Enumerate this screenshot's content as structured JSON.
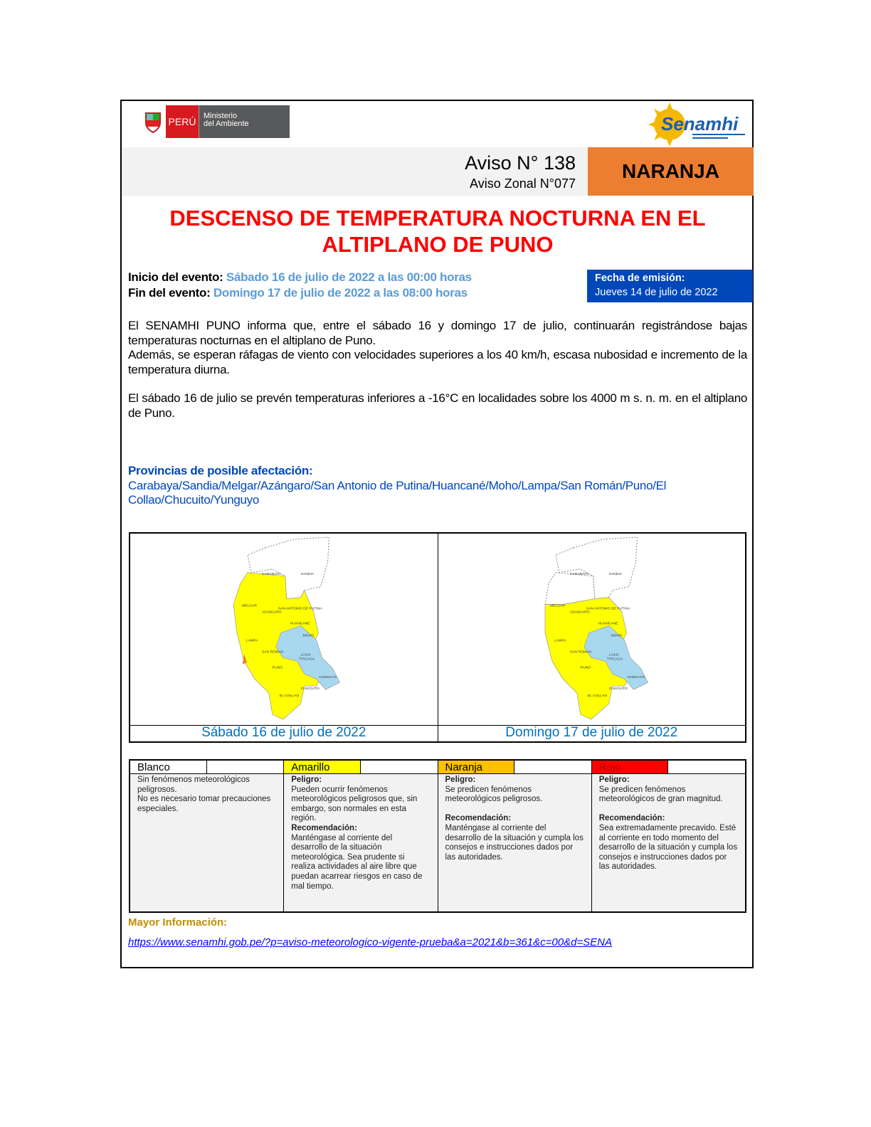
{
  "header": {
    "country": "PERÚ",
    "ministry_line1": "Ministerio",
    "ministry_line2": "del Ambiente",
    "agency_logo": "Senamhi",
    "aviso": "Aviso N° 138",
    "aviso_zonal": "Aviso Zonal N°077",
    "level": "NARANJA",
    "level_color": "#ed7d31"
  },
  "title_line1": "DESCENSO DE TEMPERATURA NOCTURNA EN EL",
  "title_line2": "ALTIPLANO DE PUNO",
  "event": {
    "start_label": "Inicio del evento:",
    "start_value": "Sábado 16 de julio de 2022 a las 00:00 horas",
    "end_label": "Fin del evento:",
    "end_value": "Domingo 17 de julio de 2022 a las 08:00 horas"
  },
  "emission": {
    "label": "Fecha de emisión:",
    "value": "Jueves 14 de julio de 2022"
  },
  "body": {
    "p1": "El SENAMHI PUNO informa que, entre el sábado 16 y domingo 17 de julio, continuarán registrándose bajas temperaturas nocturnas en el altiplano de Puno.",
    "p2": "Además, se esperan ráfagas de viento con velocidades superiores a los 40 km/h, escasa nubosidad e incremento de la temperatura diurna.",
    "p3": "El sábado 16 de julio se prevén temperaturas inferiores a -16°C en localidades sobre los 4000 m s. n. m. en el altiplano de Puno."
  },
  "provinces": {
    "label": "Provincias de posible afectación:",
    "list": "Carabaya/Sandia/Melgar/Azángaro/San Antonio de Putina/Huancané/Moho/Lampa/San Román/Puno/El Collao/Chucuito/Yunguyo"
  },
  "maps": [
    {
      "caption": "Sábado 16 de julio de 2022"
    },
    {
      "caption": "Domingo 17 de julio de 2022"
    }
  ],
  "map_labels": {
    "carabaya": "CARABAYA",
    "sandia": "SANDIA",
    "melgar": "MELGAR",
    "azangaro": "AZANGARO",
    "putina": "SAN ANTONIO DE PUTINA",
    "huancane": "HUANCANE",
    "moho": "MOHO",
    "lampa": "LAMPA",
    "sanroman": "SAN ROMAN",
    "puno": "PUNO",
    "lago": "LAGO",
    "titicaca": "TITICACA",
    "yunguyo": "YUNGUYO",
    "chucuito": "CHUCUITO",
    "collao": "EL COLLAO"
  },
  "legend": [
    {
      "name": "Blanco",
      "color": "#ffffff",
      "text": [
        "Sin fenómenos meteorológicos peligrosos.",
        "No es necesario tomar precauciones especiales."
      ]
    },
    {
      "name": "Amarillo",
      "color": "#ffff00",
      "peligro_label": "Peligro:",
      "peligro": "Pueden ocurrir fenómenos meteorológicos peligrosos que, sin embargo, son normales en esta región.",
      "rec_label": "Recomendación:",
      "rec": "Manténgase al corriente del desarrollo de la situación meteorológica. Sea prudente si realiza actividades al aire libre que puedan acarrear riesgos en caso de mal tiempo."
    },
    {
      "name": "Naranja",
      "color": "#ffc000",
      "peligro_label": "Peligro:",
      "peligro": "Se predicen fenómenos meteorológicos peligrosos.",
      "rec_label": "Recomendación:",
      "rec": "Manténgase al corriente del desarrollo de la situación y cumpla los consejos e instrucciones dados por las autoridades."
    },
    {
      "name": "Rojo",
      "color": "#ff0000",
      "peligro_label": "Peligro:",
      "peligro": "Se predicen fenómenos meteorológicos de gran magnitud.",
      "rec_label": "Recomendación:",
      "rec": "Sea extremadamente precavido. Esté al corriente en todo momento del desarrollo de la situación y cumpla los consejos e instrucciones dados por las autoridades."
    }
  ],
  "more_info_label": "Mayor Información:",
  "link": "https://www.senamhi.gob.pe/?p=aviso-meteorologico-vigente-prueba&a=2021&b=361&c=00&d=SENA"
}
